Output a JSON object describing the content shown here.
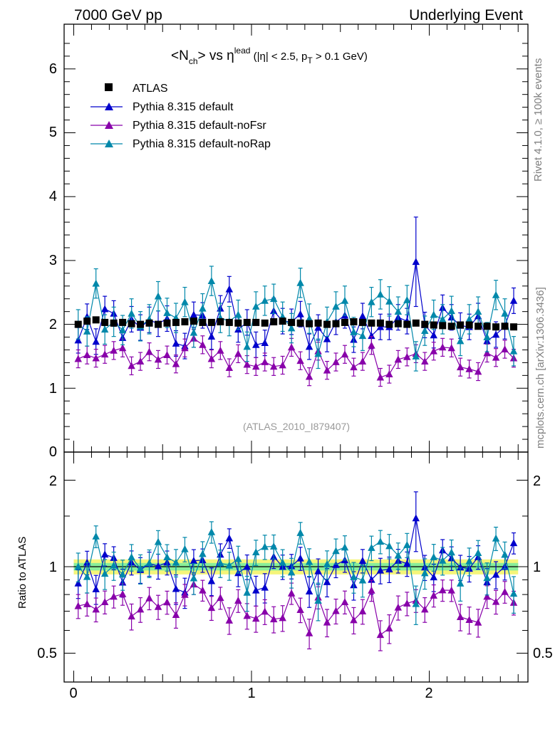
{
  "header": {
    "left": "7000 GeV pp",
    "right": "Underlying Event",
    "rivet": "Rivet 4.1.0, ≥ 100k events",
    "mcplots": "mcplots.cern.ch [arXiv:1306.3436]"
  },
  "title": {
    "n": "<N",
    "n_sub": "ch",
    "vs": "> vs η",
    "eta_sup": "lead",
    "cut1": " (|η| < 2.5, p",
    "cut_sub": "T",
    "cut2": " > 0.1 GeV)"
  },
  "analysis": "(ATLAS_2010_I879407)",
  "ratio_ylabel": "Ratio to ATLAS",
  "legend": {
    "data": "ATLAS",
    "mc1": "Pythia 8.315 default",
    "mc2": "Pythia 8.315 default-noFsr",
    "mc3": "Pythia 8.315 default-noRap"
  },
  "colors": {
    "data": "#000000",
    "mc1": "#0000cc",
    "mc2": "#8800aa",
    "mc3": "#0088aa",
    "band_outer": "#f5f57a",
    "band_inner": "#88ee99"
  },
  "chart_data": {
    "type": "scatter",
    "xlim": [
      -0.05,
      2.55
    ],
    "ylim": [
      0,
      6.7
    ],
    "ratio_ylim": [
      0.42,
      2.3
    ],
    "x_ticks": [
      "0",
      "1",
      "2"
    ],
    "y_ticks": [
      "1",
      "2",
      "3",
      "4",
      "5",
      "6"
    ],
    "ratio_ticks": [
      "0.5",
      "1",
      "2"
    ],
    "x": [
      0.025,
      0.075,
      0.125,
      0.175,
      0.225,
      0.275,
      0.325,
      0.375,
      0.425,
      0.475,
      0.525,
      0.575,
      0.625,
      0.675,
      0.725,
      0.775,
      0.825,
      0.875,
      0.925,
      0.975,
      1.025,
      1.075,
      1.125,
      1.175,
      1.225,
      1.275,
      1.325,
      1.375,
      1.425,
      1.475,
      1.525,
      1.575,
      1.625,
      1.675,
      1.725,
      1.775,
      1.825,
      1.875,
      1.925,
      1.975,
      2.025,
      2.075,
      2.125,
      2.175,
      2.225,
      2.275,
      2.325,
      2.375,
      2.425,
      2.475
    ],
    "series": [
      {
        "name": "ATLAS",
        "values": [
          2.0,
          2.05,
          2.07,
          2.03,
          2.02,
          2.03,
          2.01,
          2.0,
          2.02,
          2.0,
          2.02,
          2.03,
          2.04,
          2.05,
          2.03,
          2.03,
          2.04,
          2.03,
          2.02,
          2.03,
          2.03,
          2.02,
          2.04,
          2.05,
          2.03,
          2.02,
          2.01,
          2.02,
          2.0,
          2.01,
          2.03,
          2.04,
          2.03,
          2.02,
          2.02,
          2.0,
          2.01,
          2.0,
          2.02,
          2.0,
          1.99,
          1.98,
          1.97,
          1.99,
          1.99,
          1.97,
          1.97,
          1.96,
          1.97,
          1.96
        ],
        "errors": [
          0.04,
          0.04,
          0.04,
          0.04,
          0.04,
          0.04,
          0.04,
          0.04,
          0.04,
          0.04,
          0.04,
          0.04,
          0.04,
          0.04,
          0.04,
          0.04,
          0.04,
          0.04,
          0.04,
          0.04,
          0.04,
          0.04,
          0.04,
          0.04,
          0.04,
          0.04,
          0.04,
          0.04,
          0.04,
          0.04,
          0.04,
          0.04,
          0.04,
          0.04,
          0.04,
          0.04,
          0.04,
          0.04,
          0.04,
          0.04,
          0.04,
          0.04,
          0.04,
          0.04,
          0.04,
          0.04,
          0.04,
          0.04,
          0.04,
          0.04
        ]
      },
      {
        "name": "Pythia 8.315 default",
        "values": [
          1.75,
          2.12,
          1.73,
          2.24,
          2.17,
          1.79,
          2.08,
          1.95,
          2.07,
          2.01,
          2.09,
          1.7,
          1.66,
          2.15,
          2.14,
          1.81,
          2.25,
          2.55,
          1.92,
          2.03,
          1.68,
          1.71,
          2.21,
          2.05,
          2.04,
          2.16,
          1.65,
          1.95,
          1.77,
          2.04,
          2.14,
          1.76,
          2.13,
          1.82,
          1.96,
          1.96,
          2.11,
          2.05,
          2.98,
          1.99,
          1.83,
          2.26,
          2.11,
          1.98,
          1.96,
          2.13,
          1.74,
          1.84,
          1.97,
          2.37
        ],
        "errors": [
          0.2,
          0.2,
          0.2,
          0.2,
          0.2,
          0.2,
          0.2,
          0.2,
          0.2,
          0.2,
          0.2,
          0.2,
          0.2,
          0.2,
          0.2,
          0.2,
          0.2,
          0.2,
          0.2,
          0.2,
          0.2,
          0.2,
          0.2,
          0.2,
          0.2,
          0.2,
          0.2,
          0.2,
          0.2,
          0.2,
          0.2,
          0.2,
          0.2,
          0.2,
          0.2,
          0.2,
          0.2,
          0.2,
          0.7,
          0.2,
          0.2,
          0.2,
          0.2,
          0.2,
          0.2,
          0.2,
          0.2,
          0.2,
          0.2,
          0.2
        ]
      },
      {
        "name": "Pythia 8.315 default-noFsr",
        "values": [
          1.46,
          1.52,
          1.47,
          1.53,
          1.59,
          1.63,
          1.35,
          1.42,
          1.57,
          1.45,
          1.52,
          1.38,
          1.63,
          1.78,
          1.68,
          1.46,
          1.59,
          1.32,
          1.54,
          1.37,
          1.34,
          1.41,
          1.34,
          1.36,
          1.64,
          1.43,
          1.18,
          1.58,
          1.28,
          1.41,
          1.53,
          1.33,
          1.42,
          1.67,
          1.17,
          1.22,
          1.45,
          1.49,
          1.54,
          1.42,
          1.58,
          1.64,
          1.63,
          1.33,
          1.3,
          1.26,
          1.55,
          1.48,
          1.61,
          1.47
        ],
        "errors": [
          0.14,
          0.14,
          0.14,
          0.14,
          0.14,
          0.14,
          0.14,
          0.14,
          0.14,
          0.14,
          0.14,
          0.14,
          0.14,
          0.14,
          0.14,
          0.14,
          0.14,
          0.14,
          0.14,
          0.14,
          0.14,
          0.14,
          0.14,
          0.14,
          0.14,
          0.14,
          0.14,
          0.14,
          0.14,
          0.14,
          0.14,
          0.14,
          0.14,
          0.14,
          0.14,
          0.14,
          0.14,
          0.14,
          0.14,
          0.14,
          0.14,
          0.14,
          0.14,
          0.14,
          0.14,
          0.14,
          0.14,
          0.14,
          0.14,
          0.14
        ]
      },
      {
        "name": "Pythia 8.315 default-noRap",
        "values": [
          2.0,
          1.89,
          2.64,
          1.92,
          2.04,
          1.91,
          2.17,
          1.97,
          2.08,
          2.44,
          2.18,
          2.1,
          2.35,
          1.87,
          2.25,
          2.68,
          2.1,
          2.05,
          2.15,
          1.65,
          2.28,
          2.37,
          2.4,
          2.12,
          1.94,
          2.65,
          2.09,
          1.54,
          2.04,
          2.28,
          2.37,
          1.88,
          1.82,
          2.35,
          2.47,
          2.36,
          2.2,
          2.38,
          1.5,
          1.9,
          2.15,
          2.08,
          2.21,
          1.74,
          2.08,
          2.2,
          1.8,
          2.46,
          2.17,
          1.58
        ],
        "errors": [
          0.23,
          0.23,
          0.23,
          0.23,
          0.23,
          0.23,
          0.23,
          0.23,
          0.23,
          0.23,
          0.23,
          0.23,
          0.23,
          0.23,
          0.23,
          0.23,
          0.23,
          0.23,
          0.23,
          0.23,
          0.23,
          0.23,
          0.23,
          0.23,
          0.23,
          0.23,
          0.23,
          0.23,
          0.23,
          0.23,
          0.23,
          0.23,
          0.23,
          0.23,
          0.23,
          0.23,
          0.23,
          0.23,
          0.23,
          0.23,
          0.23,
          0.23,
          0.23,
          0.23,
          0.23,
          0.23,
          0.23,
          0.23,
          0.23,
          0.23
        ]
      }
    ],
    "band": {
      "inner": [
        0.97,
        1.03
      ],
      "outer": [
        0.94,
        1.06
      ]
    }
  }
}
